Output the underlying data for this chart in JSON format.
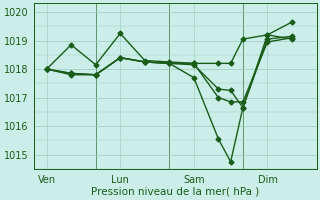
{
  "background_color": "#cceee8",
  "line_color": "#1a5c1a",
  "grid_color": "#99ccbb",
  "ylabel": "Pression niveau de la mer( hPa )",
  "ylim": [
    1014.5,
    1020.3
  ],
  "yticks": [
    1015,
    1016,
    1017,
    1018,
    1019,
    1020
  ],
  "xtick_labels": [
    "Ven",
    "Lun",
    "Sam",
    "Dim"
  ],
  "xtick_positions": [
    0.5,
    3.5,
    6.5,
    9.5
  ],
  "vline_positions": [
    0,
    2.5,
    5.5,
    8.5,
    11.5
  ],
  "series": [
    [
      1018.0,
      1018.85,
      1018.15,
      1019.25,
      1018.3,
      1018.25,
      1018.2,
      1017.0,
      1016.85,
      1016.85,
      1018.95,
      1019.1
    ],
    [
      1018.0,
      1017.8,
      1017.8,
      1018.4,
      1018.25,
      1018.2,
      1017.7,
      1015.55,
      1014.75,
      1016.65,
      1019.05,
      1019.15
    ],
    [
      1018.0,
      1017.85,
      1017.8,
      1018.4,
      1018.25,
      1018.2,
      1018.15,
      1017.3,
      1017.25,
      1016.65,
      1019.2,
      1019.65
    ],
    [
      1018.0,
      1017.85,
      1017.8,
      1018.4,
      1018.25,
      1018.2,
      1018.2,
      1018.2,
      1018.2,
      1019.05,
      1019.2,
      1019.05
    ]
  ],
  "x_values": [
    0.5,
    1.5,
    2.5,
    3.5,
    4.5,
    5.5,
    6.5,
    7.5,
    8.0,
    8.5,
    9.5,
    10.5
  ],
  "marker": "D",
  "markersize": 2.5,
  "linewidth": 1.0,
  "tick_fontsize": 7,
  "xlabel_fontsize": 7.5
}
